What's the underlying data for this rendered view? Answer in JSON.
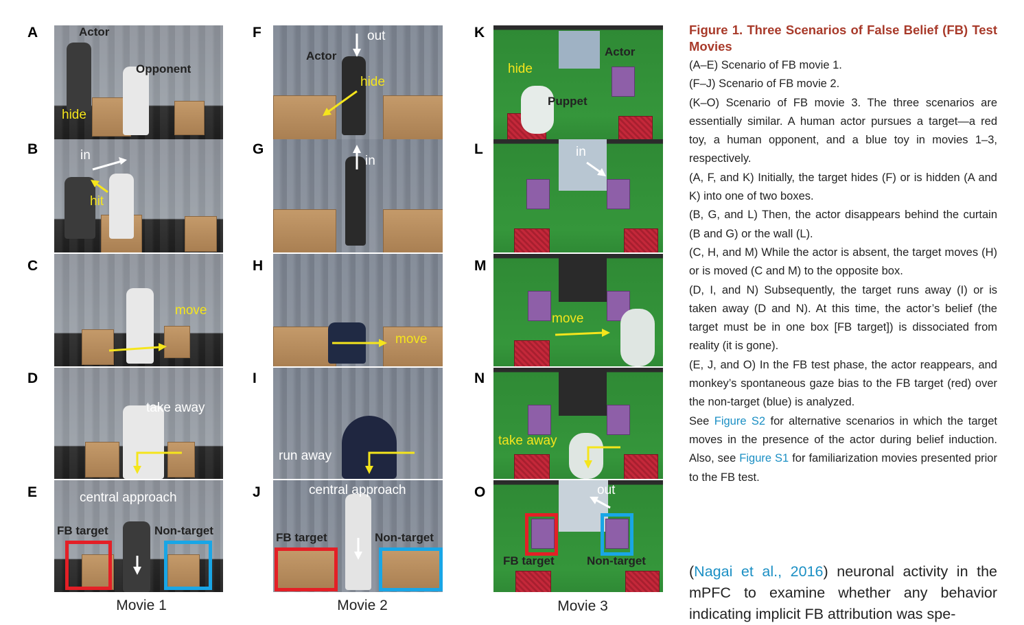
{
  "panels": {
    "A": {
      "letter": "A",
      "labels": [
        "Actor",
        "Opponent",
        "hide"
      ]
    },
    "B": {
      "letter": "B",
      "labels": [
        "in",
        "hit"
      ]
    },
    "C": {
      "letter": "C",
      "labels": [
        "move"
      ]
    },
    "D": {
      "letter": "D",
      "labels": [
        "take away"
      ]
    },
    "E": {
      "letter": "E",
      "labels": [
        "central approach",
        "FB target",
        "Non-target"
      ]
    },
    "F": {
      "letter": "F",
      "labels": [
        "out",
        "Actor",
        "hide"
      ]
    },
    "G": {
      "letter": "G",
      "labels": [
        "in"
      ]
    },
    "H": {
      "letter": "H",
      "labels": [
        "move"
      ]
    },
    "I": {
      "letter": "I",
      "labels": [
        "run away"
      ]
    },
    "J": {
      "letter": "J",
      "labels": [
        "central approach",
        "FB target",
        "Non-target"
      ]
    },
    "K": {
      "letter": "K",
      "labels": [
        "Actor",
        "hide",
        "Puppet"
      ]
    },
    "L": {
      "letter": "L",
      "labels": [
        "in"
      ]
    },
    "M": {
      "letter": "M",
      "labels": [
        "move"
      ]
    },
    "N": {
      "letter": "N",
      "labels": [
        "take away"
      ]
    },
    "O": {
      "letter": "O",
      "labels": [
        "out",
        "FB target",
        "Non-target"
      ]
    }
  },
  "movie_labels": [
    "Movie 1",
    "Movie 2",
    "Movie 3"
  ],
  "caption": {
    "title": "Figure 1. Three Scenarios of False Belief (FB) Test Movies",
    "paragraphs": [
      "(A–E) Scenario of FB movie 1.",
      "(F–J) Scenario of FB movie 2.",
      "(K–O) Scenario of FB movie 3. The three scenarios are essentially similar. A human actor pursues a target—a red toy, a human opponent, and a blue toy in movies 1–3, respectively.",
      "(A, F, and K) Initially, the target hides (F) or is hidden (A and K) into one of two boxes.",
      "(B, G, and L) Then, the actor disappears behind the curtain (B and G) or the wall (L).",
      "(C, H, and M) While the actor is absent, the target moves (H) or is moved (C and M) to the opposite box.",
      "(D, I, and N) Subsequently, the target runs away (I) or is taken away (D and N). At this time, the actor’s belief (the target must be in one box [FB target]) is dissociated from reality (it is gone).",
      "(E, J, and O) In the FB test phase, the actor reappears, and monkey’s spontaneous gaze bias to the FB target (red) over the non-target (blue) is analyzed."
    ],
    "see_prefix": "See ",
    "see_link1": "Figure S2",
    "see_middle": " for alternative scenarios in which the target moves in the presence of the actor during belief induction. Also, see ",
    "see_link2": "Figure S1",
    "see_suffix": " for familiarization movies presented prior to the FB test."
  },
  "body": {
    "open_paren": "(",
    "citation": "Nagai et al., 2016",
    "text": ") neuronal activity in the mPFC to examine whether any behavior indicating implicit FB attribution was spe-"
  },
  "colors": {
    "accent_title": "#a83a2a",
    "link": "#1b8fc4",
    "arrow_yellow": "#f5e51c",
    "fb_target": "#e41f26",
    "non_target": "#19a6e6"
  }
}
